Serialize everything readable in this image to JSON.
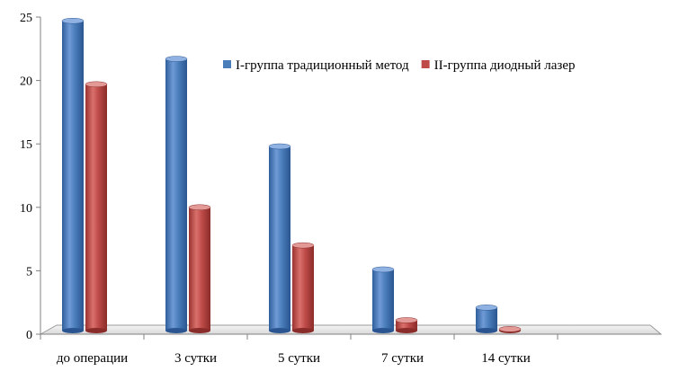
{
  "chart_data": {
    "type": "bar",
    "title": "",
    "xlabel": "",
    "ylabel": "",
    "categories": [
      "до операции",
      "3 сутки",
      "5 сутки",
      "7 сутки",
      "14 сутки",
      ""
    ],
    "series": [
      {
        "name": "I-группа традиционный  метод",
        "color": "#4a7ebb",
        "values": [
          24.7,
          21.7,
          14.8,
          5.1,
          2.1,
          null
        ]
      },
      {
        "name": "II-группа диодный  лазер",
        "color": "#be4b48",
        "values": [
          19.7,
          10.0,
          7.0,
          1.1,
          0.4,
          null
        ]
      }
    ],
    "ylim": [
      0,
      25
    ],
    "yticks": [
      0,
      5,
      10,
      15,
      20,
      25
    ],
    "grid": false,
    "legend_position": "upper-right",
    "style": "3d-cylinder-bars"
  }
}
